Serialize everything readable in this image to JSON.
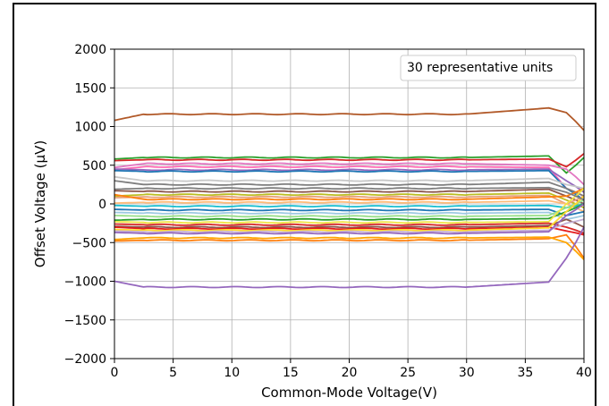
{
  "chart_data": {
    "type": "line",
    "title": "",
    "xlabel": "Common-Mode Voltage(V)",
    "ylabel": "Offset Voltage (µV)",
    "xlim": [
      0,
      40
    ],
    "ylim": [
      -2000,
      2000
    ],
    "x_ticks": [
      0,
      5,
      10,
      15,
      20,
      25,
      30,
      35,
      40
    ],
    "y_ticks": [
      -2000,
      -1500,
      -1000,
      -500,
      0,
      500,
      1000,
      1500,
      2000
    ],
    "x_tick_labels": [
      "0",
      "5",
      "10",
      "15",
      "20",
      "25",
      "30",
      "35",
      "40"
    ],
    "y_tick_labels": [
      "−2000",
      "−1500",
      "−1000",
      "−500",
      "0",
      "500",
      "1000",
      "1500",
      "2000"
    ],
    "grid": true,
    "legend": {
      "placement": "top-right",
      "text": "30 representative units"
    },
    "series": [
      {
        "color": "#b15928",
        "base": 1160,
        "start": 1080,
        "end_rise": 1240,
        "tail": [
          1180,
          950
        ]
      },
      {
        "color": "#2ca02c",
        "base": 600,
        "start": 580,
        "end_rise": 620,
        "tail": [
          400,
          600
        ]
      },
      {
        "color": "#d62728",
        "base": 570,
        "start": 560,
        "end_rise": 580,
        "tail": [
          480,
          650
        ]
      },
      {
        "color": "#e377c2",
        "base": 520,
        "start": 470,
        "end_rise": 500,
        "tail": [
          450,
          250
        ]
      },
      {
        "color": "#ff69b4",
        "base": 480,
        "start": 440,
        "end_rise": 470,
        "tail": [
          200,
          100
        ]
      },
      {
        "color": "#9467bd",
        "base": 440,
        "start": 450,
        "end_rise": 450,
        "tail": [
          300,
          150
        ]
      },
      {
        "color": "#1f77b4",
        "base": 420,
        "start": 430,
        "end_rise": 430,
        "tail": [
          200,
          50
        ]
      },
      {
        "color": "#c7c7c7",
        "base": 300,
        "start": 350,
        "end_rise": 330,
        "tail": [
          250,
          200
        ]
      },
      {
        "color": "#7f7f7f",
        "base": 250,
        "start": 300,
        "end_rise": 280,
        "tail": [
          200,
          100
        ]
      },
      {
        "color": "#8c564b",
        "base": 160,
        "start": 170,
        "end_rise": 190,
        "tail": [
          100,
          0
        ]
      },
      {
        "color": "#bcbd22",
        "base": 120,
        "start": 100,
        "end_rise": 140,
        "tail": [
          50,
          -50
        ]
      },
      {
        "color": "#e8a07a",
        "base": 90,
        "start": 80,
        "end_rise": 110,
        "tail": [
          0,
          100
        ]
      },
      {
        "color": "#ff7f0e",
        "base": 60,
        "start": 120,
        "end_rise": 90,
        "tail": [
          100,
          200
        ]
      },
      {
        "color": "#ffbb78",
        "base": 20,
        "start": 10,
        "end_rise": 40,
        "tail": [
          0,
          -100
        ]
      },
      {
        "color": "#17becf",
        "base": -30,
        "start": -20,
        "end_rise": -20,
        "tail": [
          -50,
          0
        ]
      },
      {
        "color": "#1f77b4",
        "base": -80,
        "start": -70,
        "end_rise": -70,
        "tail": [
          -150,
          -100
        ]
      },
      {
        "color": "#9ecae1",
        "base": -120,
        "start": -110,
        "end_rise": -110,
        "tail": [
          -200,
          -150
        ]
      },
      {
        "color": "#98df8a",
        "base": -160,
        "start": -150,
        "end_rise": -150,
        "tail": [
          -50,
          50
        ]
      },
      {
        "color": "#2ca02c",
        "base": -200,
        "start": -210,
        "end_rise": -190,
        "tail": [
          -100,
          0
        ]
      },
      {
        "color": "#f0e442",
        "base": -240,
        "start": -230,
        "end_rise": -230,
        "tail": [
          0,
          200
        ]
      },
      {
        "color": "#d62728",
        "base": -270,
        "start": -260,
        "end_rise": -250,
        "tail": [
          -300,
          -380
        ]
      },
      {
        "color": "#8c564b",
        "base": -300,
        "start": -290,
        "end_rise": -280,
        "tail": [
          -200,
          -300
        ]
      },
      {
        "color": "#e41a1c",
        "base": -320,
        "start": -300,
        "end_rise": -300,
        "tail": [
          -350,
          -400
        ]
      },
      {
        "color": "#ffd92f",
        "base": -340,
        "start": -330,
        "end_rise": -310,
        "tail": [
          -100,
          100
        ]
      },
      {
        "color": "#c5b0d5",
        "base": -360,
        "start": -350,
        "end_rise": -340,
        "tail": [
          -250,
          -200
        ]
      },
      {
        "color": "#9467bd",
        "base": -380,
        "start": -370,
        "end_rise": -360,
        "tail": [
          -150,
          0
        ]
      },
      {
        "color": "#ff7f0e",
        "base": -470,
        "start": -480,
        "end_rise": -450,
        "tail": [
          -400,
          -700
        ]
      },
      {
        "color": "#ffa500",
        "base": -440,
        "start": -460,
        "end_rise": -430,
        "tail": [
          -500,
          -720
        ]
      },
      {
        "color": "#9467bd",
        "base": -1075,
        "start": -1000,
        "end_rise": -1010,
        "tail": [
          -700,
          -300
        ]
      },
      {
        "color": "#7f7f7f",
        "base": 200,
        "start": 190,
        "end_rise": 210,
        "tail": [
          150,
          50
        ]
      }
    ]
  }
}
